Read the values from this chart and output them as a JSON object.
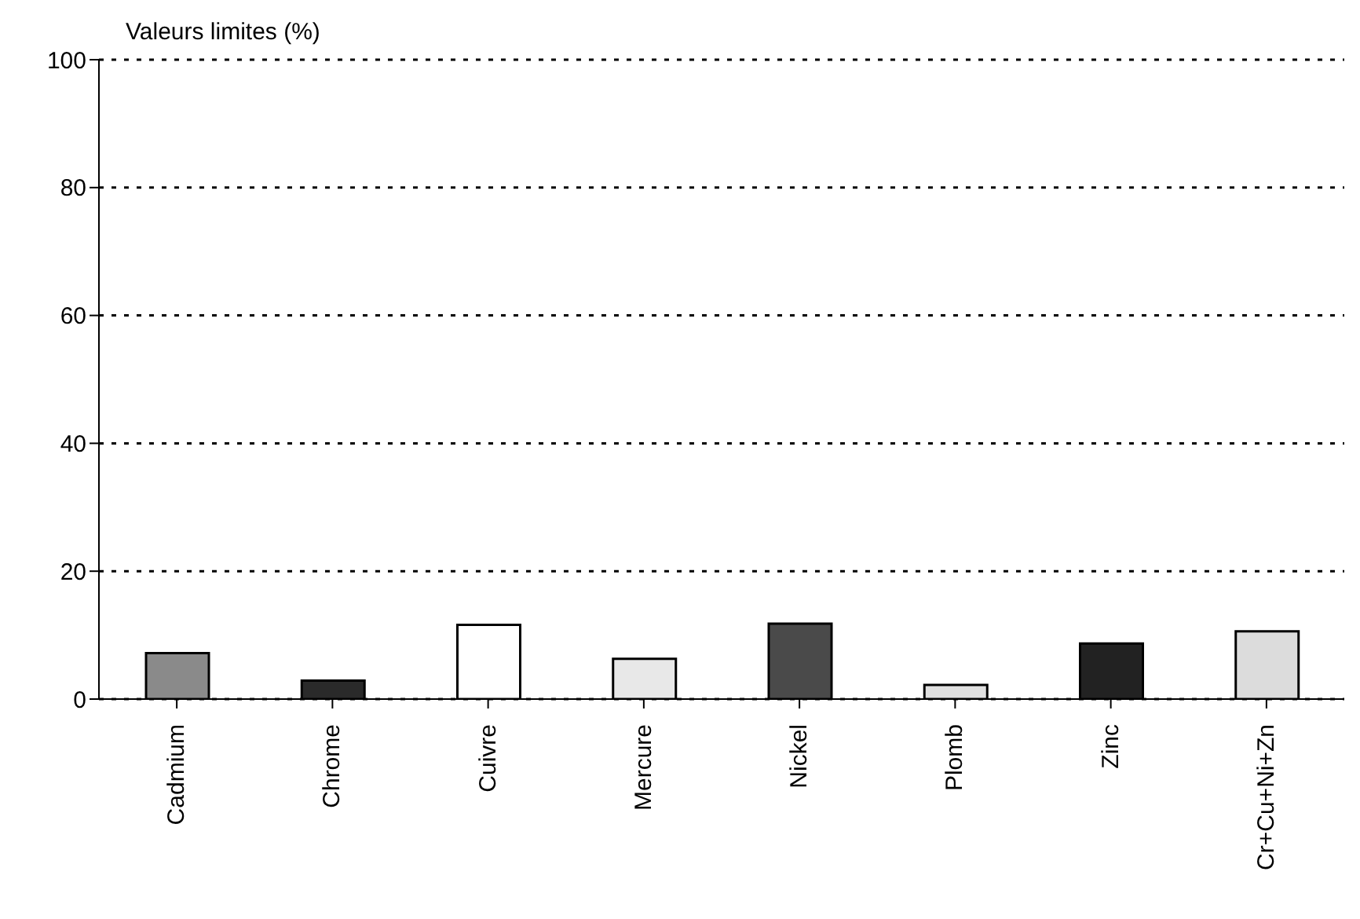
{
  "chart_data": {
    "type": "bar",
    "ylabel": "Valeurs limites (%)",
    "categories": [
      "Cadmium",
      "Chrome",
      "Cuivre",
      "Mercure",
      "Nickel",
      "Plomb",
      "Zinc",
      "Cr+Cu+Ni+Zn"
    ],
    "values": [
      7.2,
      2.9,
      11.6,
      6.3,
      11.8,
      2.2,
      8.7,
      10.6
    ],
    "colors": [
      "#8a8a8a",
      "#2a2a2a",
      "#ffffff",
      "#e8e8e8",
      "#4a4a4a",
      "#e0e0e0",
      "#222222",
      "#dcdcdc"
    ],
    "ylim": [
      0,
      100
    ],
    "yticks": [
      0,
      20,
      40,
      60,
      80,
      100
    ],
    "grid": "y",
    "line_style": "dotted"
  }
}
